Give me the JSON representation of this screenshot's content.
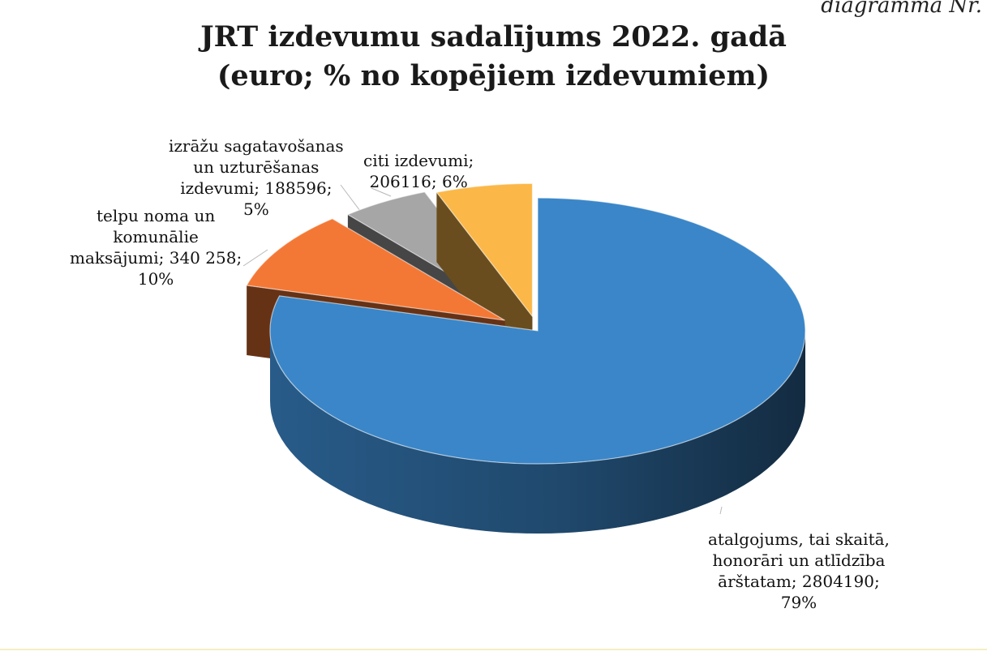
{
  "corner_label": "diagramma Nr.",
  "chart_data": {
    "type": "pie",
    "title": "JRT izdevumu sadalījums 2022. gadā",
    "subtitle": "(euro; % no kopējiem izdevumiem)",
    "legend": "none",
    "slices": [
      {
        "name": "atalgojums, tai skaitā, honorāri un atlīdzība ārštatam",
        "value": 2804190,
        "percent": 79,
        "color": "#3a86c8",
        "label_lines": [
          "atalgojums, tai skaitā,",
          "honorāri un atlīdzība",
          "ārštatam; 2804190;",
          "79%"
        ]
      },
      {
        "name": "telpu noma un komunālie maksājumi",
        "value": 340258,
        "percent": 10,
        "color": "#f47835",
        "label_lines": [
          "telpu noma un",
          "komunālie",
          "maksājumi; 340 258;",
          "10%"
        ]
      },
      {
        "name": "izrāžu sagatavošanas un uzturēšanas izdevumi",
        "value": 188596,
        "percent": 5,
        "color": "#a6a6a6",
        "label_lines": [
          "izrāžu sagatavošanas",
          "un uzturēšanas",
          "izdevumi; 188596;",
          "5%"
        ]
      },
      {
        "name": "citi izdevumi",
        "value": 206116,
        "percent": 6,
        "color": "#fbb848",
        "label_lines": [
          "citi izdevumi;",
          "206116; 6%"
        ]
      }
    ]
  }
}
